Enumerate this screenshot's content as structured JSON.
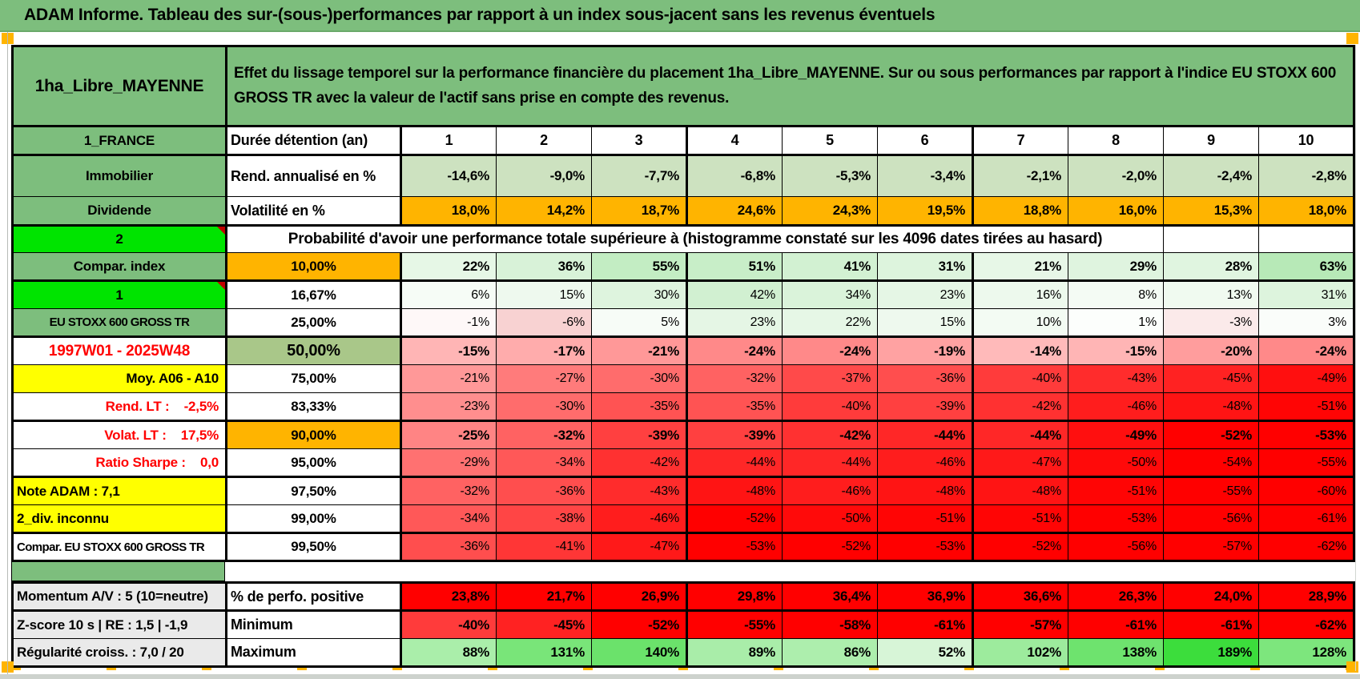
{
  "title": "ADAM Informe. Tableau des sur-(sous-)performances par rapport à un index sous-jacent sans les revenus éventuels",
  "colors": {
    "band_green": "#7DBE7D",
    "bright_green": "#00E400",
    "orange": "#FFB400",
    "yellow": "#FFFF00",
    "sage_green": "#A9C789",
    "gray_label": "#EAEAEA",
    "red_text": "#FF0000",
    "strong_red": "#FF0000",
    "rend_row_bg": "#CDE2C0",
    "marker_red": "#C00000",
    "handle_orange": "#FFB400"
  },
  "header": {
    "asset": "1ha_Libre_MAYENNE",
    "description": "Effet du lissage temporel sur la performance financière du placement 1ha_Libre_MAYENNE. Sur ou sous performances par rapport à l'indice EU STOXX 600 GROSS TR avec la valeur de l'actif sans prise en compte des revenus."
  },
  "info_rows": [
    {
      "label": "1_FRANCE",
      "metric": "Durée détention (an)",
      "kind": "cols",
      "cells": [
        "1",
        "2",
        "3",
        "4",
        "5",
        "6",
        "7",
        "8",
        "9",
        "10"
      ]
    },
    {
      "label": "Immobilier",
      "metric": "Rend. annualisé en %",
      "kind": "rend",
      "bg": "#CDE2C0",
      "cells": [
        "-14,6%",
        "-9,0%",
        "-7,7%",
        "-6,8%",
        "-5,3%",
        "-3,4%",
        "-2,1%",
        "-2,0%",
        "-2,4%",
        "-2,8%"
      ]
    },
    {
      "label": "Dividende",
      "metric": "Volatilité en %",
      "kind": "vol",
      "bg": "#FFB400",
      "cells": [
        "18,0%",
        "14,2%",
        "18,7%",
        "24,6%",
        "24,3%",
        "19,5%",
        "18,8%",
        "16,0%",
        "15,3%",
        "18,0%"
      ]
    }
  ],
  "banner": {
    "label": "2",
    "text": "Probabilité d'avoir une performance totale supérieure à (histogramme constaté sur les 4096 dates tirées au hasard)"
  },
  "matrix_rows": [
    {
      "label": "Compar. index",
      "lv": "green",
      "pct": "10,00%",
      "pbg": "#FFB400",
      "bold": true,
      "cells": [
        [
          "22%",
          "#E6F7E6"
        ],
        [
          "36%",
          "#D8F2D8"
        ],
        [
          "55%",
          "#C3EDC3"
        ],
        [
          "51%",
          "#C8EEC8"
        ],
        [
          "41%",
          "#D2F1D2"
        ],
        [
          "31%",
          "#DDF4DD"
        ],
        [
          "21%",
          "#E7F7E7"
        ],
        [
          "29%",
          "#DFF4DF"
        ],
        [
          "28%",
          "#E0F5E0"
        ],
        [
          "63%",
          "#B7E9B7"
        ]
      ]
    },
    {
      "label": "1",
      "lv": "bright",
      "marker": true,
      "tt": true,
      "pct": "16,67%",
      "cells": [
        [
          "6%",
          "#F6FCF6"
        ],
        [
          "15%",
          "#EEF9EE"
        ],
        [
          "30%",
          "#DEF4DE"
        ],
        [
          "42%",
          "#D1F0D1"
        ],
        [
          "34%",
          "#DAF3DA"
        ],
        [
          "23%",
          "#E5F6E5"
        ],
        [
          "16%",
          "#EDF9ED"
        ],
        [
          "8%",
          "#F4FBF4"
        ],
        [
          "13%",
          "#F0FAF0"
        ],
        [
          "31%",
          "#DDF4DD"
        ]
      ]
    },
    {
      "label": "EU STOXX 600 GROSS TR",
      "lv": "green",
      "small": true,
      "pct": "25,00%",
      "cells": [
        [
          "-1%",
          "#FEF8F8"
        ],
        [
          "-6%",
          "#F8D2D2"
        ],
        [
          "5%",
          "#F7FCF7"
        ],
        [
          "23%",
          "#E5F6E5"
        ],
        [
          "22%",
          "#E6F7E6"
        ],
        [
          "15%",
          "#EEF9EE"
        ],
        [
          "10%",
          "#F3FBF3"
        ],
        [
          "1%",
          "#FCFEFC"
        ],
        [
          "-3%",
          "#FBEAEA"
        ],
        [
          "3%",
          "#FAFDFA"
        ]
      ]
    },
    {
      "label": "1997W01 - 2025W48",
      "lv": "reddate",
      "tt": true,
      "pct": "50,00%",
      "pbg": "#A9C789",
      "big": true,
      "bold": true,
      "cells": [
        [
          "-15%",
          "#FFB5B5"
        ],
        [
          "-17%",
          "#FFACAC"
        ],
        [
          "-21%",
          "#FF9898"
        ],
        [
          "-24%",
          "#FF8989"
        ],
        [
          "-24%",
          "#FF8989"
        ],
        [
          "-19%",
          "#FFA2A2"
        ],
        [
          "-14%",
          "#FFBABA"
        ],
        [
          "-15%",
          "#FFB5B5"
        ],
        [
          "-20%",
          "#FF9D9D"
        ],
        [
          "-24%",
          "#FF8989"
        ]
      ]
    },
    {
      "label": "Moy. A06 - A10",
      "lv": "yellow",
      "la": "right",
      "pct": "75,00%",
      "cells": [
        [
          "-21%",
          "#FF9898"
        ],
        [
          "-27%",
          "#FF7B7B"
        ],
        [
          "-30%",
          "#FF6C6C"
        ],
        [
          "-32%",
          "#FF6262"
        ],
        [
          "-37%",
          "#FF4A4A"
        ],
        [
          "-36%",
          "#FF4E4E"
        ],
        [
          "-40%",
          "#FF3B3B"
        ],
        [
          "-43%",
          "#FF2C2C"
        ],
        [
          "-45%",
          "#FF2222"
        ],
        [
          "-49%",
          "#FF0F0F"
        ]
      ]
    },
    {
      "label": "Rend. LT :    -2,5%",
      "lv": "redtext",
      "la": "right",
      "pct": "83,33%",
      "cells": [
        [
          "-23%",
          "#FF8E8E"
        ],
        [
          "-30%",
          "#FF6C6C"
        ],
        [
          "-35%",
          "#FF5353"
        ],
        [
          "-35%",
          "#FF5353"
        ],
        [
          "-40%",
          "#FF3B3B"
        ],
        [
          "-39%",
          "#FF4040"
        ],
        [
          "-42%",
          "#FF3131"
        ],
        [
          "-46%",
          "#FF1D1D"
        ],
        [
          "-48%",
          "#FF1414"
        ],
        [
          "-51%",
          "#FF0505"
        ]
      ]
    },
    {
      "label": "Volat. LT :    17,5%",
      "lv": "redtext",
      "la": "right",
      "tt": true,
      "pct": "90,00%",
      "pbg": "#FFB400",
      "bold": true,
      "cells": [
        [
          "-25%",
          "#FF8484"
        ],
        [
          "-32%",
          "#FF6262"
        ],
        [
          "-39%",
          "#FF4040"
        ],
        [
          "-39%",
          "#FF4040"
        ],
        [
          "-42%",
          "#FF3131"
        ],
        [
          "-44%",
          "#FF2727"
        ],
        [
          "-44%",
          "#FF2727"
        ],
        [
          "-49%",
          "#FF0F0F"
        ],
        [
          "-52%",
          "#FF0000"
        ],
        [
          "-53%",
          "#FF0000"
        ]
      ]
    },
    {
      "label": "Ratio Sharpe :    0,0",
      "lv": "redtext",
      "la": "right",
      "pct": "95,00%",
      "cells": [
        [
          "-29%",
          "#FF7171"
        ],
        [
          "-34%",
          "#FF5858"
        ],
        [
          "-42%",
          "#FF3131"
        ],
        [
          "-44%",
          "#FF2727"
        ],
        [
          "-44%",
          "#FF2727"
        ],
        [
          "-46%",
          "#FF1D1D"
        ],
        [
          "-47%",
          "#FF1919"
        ],
        [
          "-50%",
          "#FF0A0A"
        ],
        [
          "-54%",
          "#FF0000"
        ],
        [
          "-55%",
          "#FF0000"
        ]
      ]
    },
    {
      "label": "Note ADAM : 7,1",
      "lv": "yellow",
      "la": "left",
      "tt": true,
      "pct": "97,50%",
      "cells": [
        [
          "-32%",
          "#FF6262"
        ],
        [
          "-36%",
          "#FF4E4E"
        ],
        [
          "-43%",
          "#FF2C2C"
        ],
        [
          "-48%",
          "#FF1414"
        ],
        [
          "-46%",
          "#FF1D1D"
        ],
        [
          "-48%",
          "#FF1414"
        ],
        [
          "-48%",
          "#FF1414"
        ],
        [
          "-51%",
          "#FF0505"
        ],
        [
          "-55%",
          "#FF0000"
        ],
        [
          "-60%",
          "#FF0000"
        ]
      ]
    },
    {
      "label": "2_div. inconnu",
      "lv": "yellow",
      "la": "left",
      "pct": "99,00%",
      "cells": [
        [
          "-34%",
          "#FF5858"
        ],
        [
          "-38%",
          "#FF4545"
        ],
        [
          "-46%",
          "#FF1D1D"
        ],
        [
          "-52%",
          "#FF0000"
        ],
        [
          "-50%",
          "#FF0A0A"
        ],
        [
          "-51%",
          "#FF0505"
        ],
        [
          "-51%",
          "#FF0505"
        ],
        [
          "-53%",
          "#FF0000"
        ],
        [
          "-56%",
          "#FF0000"
        ],
        [
          "-61%",
          "#FF0000"
        ]
      ]
    },
    {
      "label": "Compar. EU STOXX 600 GROSS TR",
      "lv": "plain",
      "la": "left",
      "small": true,
      "tt": true,
      "pct": "99,50%",
      "cells": [
        [
          "-36%",
          "#FF4E4E"
        ],
        [
          "-41%",
          "#FF3636"
        ],
        [
          "-47%",
          "#FF1919"
        ],
        [
          "-53%",
          "#FF0000"
        ],
        [
          "-52%",
          "#FF0000"
        ],
        [
          "-53%",
          "#FF0000"
        ],
        [
          "-52%",
          "#FF0000"
        ],
        [
          "-56%",
          "#FF0000"
        ],
        [
          "-57%",
          "#FF0000"
        ],
        [
          "-62%",
          "#FF0000"
        ]
      ]
    }
  ],
  "bottom_rows": [
    {
      "label": "Momentum A/V : 5 (10=neutre)",
      "metric": "% de perfo. positive",
      "cells": [
        [
          "23,8%",
          "#FF0000"
        ],
        [
          "21,7%",
          "#FF0000"
        ],
        [
          "26,9%",
          "#FF0000"
        ],
        [
          "29,8%",
          "#FF0000"
        ],
        [
          "36,4%",
          "#FF0000"
        ],
        [
          "36,9%",
          "#FF0000"
        ],
        [
          "36,6%",
          "#FF0000"
        ],
        [
          "26,3%",
          "#FF0000"
        ],
        [
          "24,0%",
          "#FF0000"
        ],
        [
          "28,9%",
          "#FF0000"
        ]
      ]
    },
    {
      "label": "Z-score 10 s | RE : 1,5 | -1,9",
      "metric": "Minimum",
      "tt": true,
      "cells": [
        [
          "-40%",
          "#FF3B3B"
        ],
        [
          "-45%",
          "#FF2222"
        ],
        [
          "-52%",
          "#FF0000"
        ],
        [
          "-55%",
          "#FF0000"
        ],
        [
          "-58%",
          "#FF0000"
        ],
        [
          "-61%",
          "#FF0000"
        ],
        [
          "-57%",
          "#FF0000"
        ],
        [
          "-61%",
          "#FF0000"
        ],
        [
          "-61%",
          "#FF0000"
        ],
        [
          "-62%",
          "#FF0000"
        ]
      ]
    },
    {
      "label": "Régularité croiss. : 7,0 / 20",
      "metric": "Maximum",
      "cells": [
        [
          "88%",
          "#AAEEAA"
        ],
        [
          "131%",
          "#79E579"
        ],
        [
          "140%",
          "#6BE26B"
        ],
        [
          "89%",
          "#A9EDA9"
        ],
        [
          "86%",
          "#ADEEAD"
        ],
        [
          "52%",
          "#D7F5D7"
        ],
        [
          "102%",
          "#9DEB9D"
        ],
        [
          "138%",
          "#6EE36E"
        ],
        [
          "189%",
          "#3CDD3C"
        ],
        [
          "128%",
          "#7DE67D"
        ]
      ]
    }
  ]
}
